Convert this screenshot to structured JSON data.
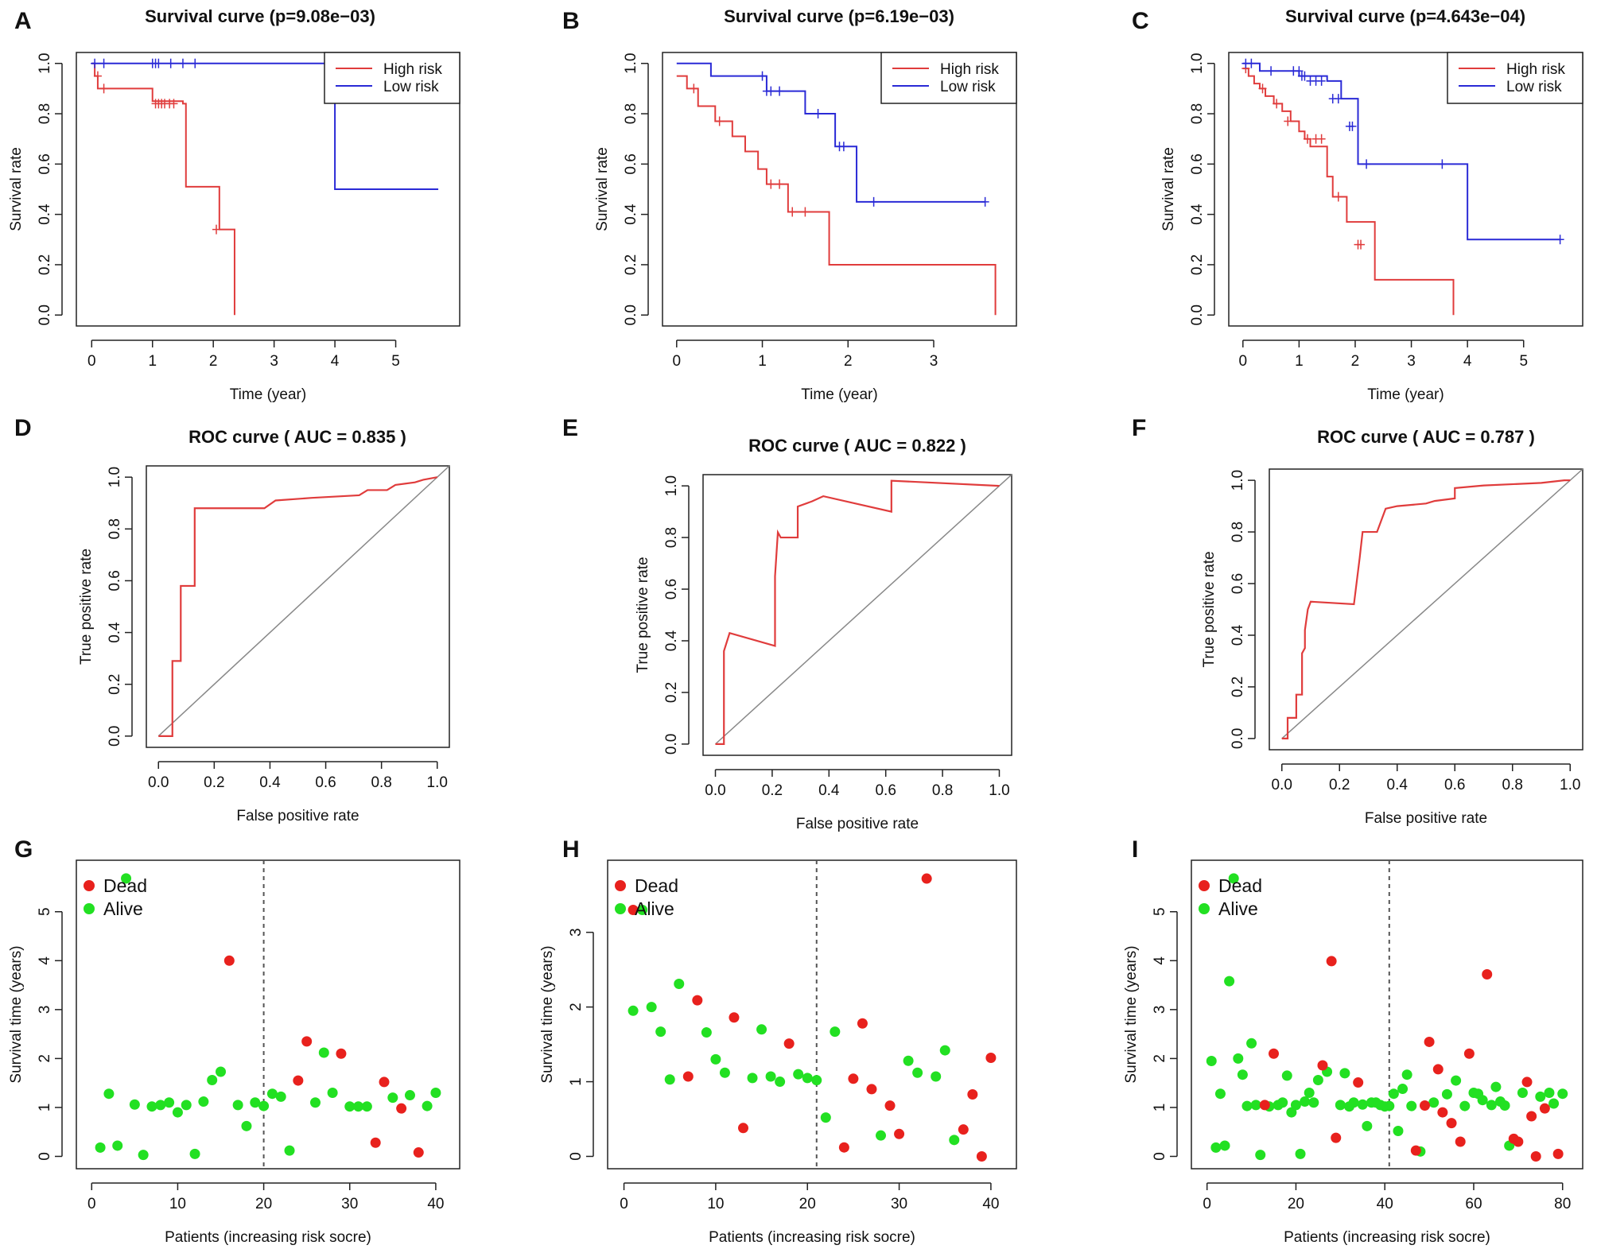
{
  "colors": {
    "high_risk": "#e03c3c",
    "low_risk": "#2a2ad6",
    "dead": "#e8211d",
    "alive": "#22e022",
    "diagonal": "#888888",
    "axis": "#222222"
  },
  "chart_data": [
    {
      "panel": "A",
      "type": "line",
      "title": "Survival curve (p=9.08e−03)",
      "xlabel": "Time (year)",
      "ylabel": "Survival rate",
      "xlim": [
        0,
        5.8
      ],
      "ylim": [
        0,
        1
      ],
      "xticks": [
        0,
        1,
        2,
        3,
        4,
        5
      ],
      "yticks": [
        "0.0",
        "0.2",
        "0.4",
        "0.6",
        "0.8",
        "1.0"
      ],
      "legend": {
        "position": "top-right",
        "entries": [
          "High risk",
          "Low risk"
        ]
      },
      "series": [
        {
          "name": "High risk",
          "color_key": "high_risk",
          "x": [
            0,
            0.05,
            0.1,
            0.25,
            1.0,
            1.5,
            1.55,
            2.1,
            2.35
          ],
          "y": [
            1.0,
            0.95,
            0.9,
            0.9,
            0.85,
            0.84,
            0.51,
            0.34,
            0.0
          ],
          "censor_x": [
            0.1,
            0.2,
            1.05,
            1.1,
            1.15,
            1.2,
            1.28,
            1.35,
            2.05
          ],
          "censor_y": [
            0.95,
            0.9,
            0.84,
            0.84,
            0.84,
            0.84,
            0.84,
            0.84,
            0.34
          ]
        },
        {
          "name": "Low risk",
          "color_key": "low_risk",
          "x": [
            0,
            4.0,
            5.7
          ],
          "y": [
            1.0,
            0.5,
            0.5
          ],
          "censor_x": [
            0.05,
            0.2,
            1.0,
            1.05,
            1.1,
            1.3,
            1.5,
            1.7
          ],
          "censor_y": [
            1.0,
            1.0,
            1.0,
            1.0,
            1.0,
            1.0,
            1.0,
            1.0
          ],
          "end_censor": [
            5.7,
            0.5
          ]
        }
      ]
    },
    {
      "panel": "B",
      "type": "line",
      "title": "Survival curve (p=6.19e−03)",
      "xlabel": "Time (year)",
      "ylabel": "Survival rate",
      "xlim": [
        0,
        3.8
      ],
      "ylim": [
        0,
        1
      ],
      "xticks": [
        0,
        1,
        2,
        3
      ],
      "yticks": [
        "0.0",
        "0.2",
        "0.4",
        "0.6",
        "0.8",
        "1.0"
      ],
      "legend": {
        "position": "top-right",
        "entries": [
          "High risk",
          "Low risk"
        ]
      },
      "series": [
        {
          "name": "High risk",
          "color_key": "high_risk",
          "x": [
            0,
            0.12,
            0.25,
            0.45,
            0.65,
            0.8,
            0.95,
            1.05,
            1.3,
            1.78,
            3.72
          ],
          "y": [
            0.95,
            0.9,
            0.83,
            0.77,
            0.71,
            0.65,
            0.58,
            0.52,
            0.41,
            0.2,
            0.0
          ],
          "censor_x": [
            0.2,
            0.5,
            1.1,
            1.2,
            1.35,
            1.5
          ],
          "censor_y": [
            0.9,
            0.77,
            0.52,
            0.52,
            0.41,
            0.41
          ]
        },
        {
          "name": "Low risk",
          "color_key": "low_risk",
          "x": [
            0,
            0.4,
            1.05,
            1.5,
            1.85,
            2.1,
            3.6
          ],
          "y": [
            1.0,
            0.95,
            0.89,
            0.8,
            0.67,
            0.45,
            0.45
          ],
          "censor_x": [
            1.0,
            1.05,
            1.1,
            1.2,
            1.65,
            1.9,
            1.95,
            2.3,
            3.6
          ],
          "censor_y": [
            0.95,
            0.89,
            0.89,
            0.89,
            0.8,
            0.67,
            0.67,
            0.45,
            0.45
          ]
        }
      ]
    },
    {
      "panel": "C",
      "type": "line",
      "title": "Survival curve (p=4.643e−04)",
      "xlabel": "Time (year)",
      "ylabel": "Survival rate",
      "xlim": [
        0,
        5.8
      ],
      "ylim": [
        0,
        1
      ],
      "xticks": [
        0,
        1,
        2,
        3,
        4,
        5
      ],
      "yticks": [
        "0.0",
        "0.2",
        "0.4",
        "0.6",
        "0.8",
        "1.0"
      ],
      "legend": {
        "position": "top-right",
        "entries": [
          "High risk",
          "Low risk"
        ]
      },
      "series": [
        {
          "name": "High risk",
          "color_key": "high_risk",
          "x": [
            0,
            0.1,
            0.2,
            0.3,
            0.4,
            0.55,
            0.7,
            0.85,
            1.0,
            1.1,
            1.2,
            1.5,
            1.6,
            1.85,
            2.35,
            3.75
          ],
          "y": [
            0.98,
            0.95,
            0.92,
            0.9,
            0.87,
            0.84,
            0.81,
            0.77,
            0.73,
            0.7,
            0.67,
            0.55,
            0.47,
            0.37,
            0.14,
            0.0
          ],
          "censor_x": [
            0.05,
            0.35,
            0.6,
            0.8,
            1.15,
            1.3,
            1.4,
            1.7,
            2.05,
            2.1
          ],
          "censor_y": [
            0.98,
            0.9,
            0.84,
            0.77,
            0.7,
            0.7,
            0.7,
            0.47,
            0.28,
            0.28
          ]
        },
        {
          "name": "Low risk",
          "color_key": "low_risk",
          "x": [
            0,
            0.3,
            1.0,
            1.5,
            1.75,
            2.05,
            4.0,
            5.65
          ],
          "y": [
            1.0,
            0.97,
            0.95,
            0.93,
            0.86,
            0.6,
            0.3,
            0.3
          ],
          "censor_x": [
            0.05,
            0.15,
            0.5,
            0.9,
            1.0,
            1.05,
            1.1,
            1.2,
            1.3,
            1.4,
            1.6,
            1.7,
            1.9,
            1.95,
            2.2,
            3.55,
            5.65
          ],
          "censor_y": [
            1.0,
            1.0,
            0.97,
            0.97,
            0.97,
            0.95,
            0.95,
            0.93,
            0.93,
            0.93,
            0.86,
            0.86,
            0.75,
            0.75,
            0.6,
            0.6,
            0.3
          ]
        }
      ]
    },
    {
      "panel": "D",
      "type": "line",
      "title": "ROC curve ( AUC =  0.835 )",
      "xlabel": "False positive rate",
      "ylabel": "True positive rate",
      "xlim": [
        0,
        1
      ],
      "ylim": [
        0,
        1
      ],
      "xticks": [
        "0.0",
        "0.2",
        "0.4",
        "0.6",
        "0.8",
        "1.0"
      ],
      "yticks": [
        "0.0",
        "0.2",
        "0.4",
        "0.6",
        "0.8",
        "1.0"
      ],
      "roc": {
        "x": [
          0,
          0.05,
          0.05,
          0.08,
          0.08,
          0.13,
          0.13,
          0.38,
          0.42,
          0.55,
          0.72,
          0.75,
          0.82,
          0.85,
          0.92,
          0.95,
          1.0
        ],
        "y": [
          0,
          0,
          0.29,
          0.29,
          0.58,
          0.58,
          0.88,
          0.88,
          0.91,
          0.92,
          0.93,
          0.95,
          0.95,
          0.97,
          0.98,
          0.99,
          1.0
        ]
      }
    },
    {
      "panel": "E",
      "type": "line",
      "title": "ROC curve ( AUC =  0.822 )",
      "xlabel": "False positive rate",
      "ylabel": "True positive rate",
      "xlim": [
        0,
        1
      ],
      "ylim": [
        0,
        1
      ],
      "xticks": [
        "0.0",
        "0.2",
        "0.4",
        "0.6",
        "0.8",
        "1.0"
      ],
      "yticks": [
        "0.0",
        "0.2",
        "0.4",
        "0.6",
        "0.8",
        "1.0"
      ],
      "roc": {
        "x": [
          0,
          0.03,
          0.03,
          0.05,
          0.21,
          0.21,
          0.22,
          0.23,
          0.29,
          0.29,
          0.34,
          0.38,
          0.62,
          0.62,
          1.0
        ],
        "y": [
          0,
          0,
          0.36,
          0.43,
          0.38,
          0.65,
          0.82,
          0.8,
          0.8,
          0.92,
          0.94,
          0.96,
          0.9,
          1.02,
          1.0
        ]
      }
    },
    {
      "panel": "F",
      "type": "line",
      "title": "ROC curve ( AUC =  0.787 )",
      "xlabel": "False positive rate",
      "ylabel": "True positive rate",
      "xlim": [
        0,
        1
      ],
      "ylim": [
        0,
        1
      ],
      "xticks": [
        "0.0",
        "0.2",
        "0.4",
        "0.6",
        "0.8",
        "1.0"
      ],
      "yticks": [
        "0.0",
        "0.2",
        "0.4",
        "0.6",
        "0.8",
        "1.0"
      ],
      "roc": {
        "x": [
          0,
          0.02,
          0.02,
          0.05,
          0.05,
          0.07,
          0.07,
          0.08,
          0.08,
          0.09,
          0.1,
          0.25,
          0.27,
          0.28,
          0.33,
          0.36,
          0.4,
          0.5,
          0.53,
          0.6,
          0.6,
          0.7,
          0.9,
          0.98,
          1.0
        ],
        "y": [
          0,
          0,
          0.08,
          0.08,
          0.17,
          0.17,
          0.33,
          0.35,
          0.42,
          0.5,
          0.53,
          0.52,
          0.7,
          0.8,
          0.8,
          0.89,
          0.9,
          0.91,
          0.92,
          0.93,
          0.97,
          0.98,
          0.99,
          1.0,
          1.0
        ]
      }
    },
    {
      "panel": "G",
      "type": "scatter",
      "xlabel": "Patients (increasing risk socre)",
      "ylabel": "Survival time (years)",
      "xlim": [
        0,
        41
      ],
      "ylim": [
        0,
        5.8
      ],
      "cutoff_x": 20,
      "xticks": [
        0,
        10,
        20,
        30,
        40
      ],
      "yticks": [
        0,
        1,
        2,
        3,
        4,
        5
      ],
      "legend": {
        "position": "top-left",
        "entries": [
          "Dead",
          "Alive"
        ]
      },
      "dead": {
        "x": [
          16,
          24,
          25,
          29,
          33,
          34,
          36,
          38
        ],
        "y": [
          4.0,
          1.55,
          2.35,
          2.1,
          0.28,
          1.52,
          0.98,
          0.08
        ]
      },
      "alive": {
        "x": [
          1,
          2,
          3,
          4,
          5,
          6,
          7,
          8,
          9,
          10,
          11,
          12,
          13,
          14,
          15,
          17,
          18,
          19,
          20,
          21,
          22,
          23,
          26,
          27,
          28,
          30,
          31,
          32,
          35,
          37,
          39,
          40
        ],
        "y": [
          0.18,
          1.28,
          0.22,
          5.68,
          1.06,
          0.03,
          1.02,
          1.05,
          1.1,
          0.9,
          1.05,
          0.05,
          1.12,
          1.56,
          1.73,
          1.05,
          0.62,
          1.1,
          1.03,
          1.28,
          1.22,
          0.12,
          1.1,
          2.12,
          1.3,
          1.02,
          1.02,
          1.02,
          1.2,
          1.25,
          1.03,
          1.3
        ]
      }
    },
    {
      "panel": "H",
      "type": "scatter",
      "xlabel": "Patients (increasing risk socre)",
      "ylabel": "Survival time (years)",
      "xlim": [
        0,
        41
      ],
      "ylim": [
        0,
        3.8
      ],
      "cutoff_x": 21,
      "xticks": [
        0,
        10,
        20,
        30,
        40
      ],
      "yticks": [
        0,
        1,
        2,
        3
      ],
      "legend": {
        "position": "top-left",
        "entries": [
          "Dead",
          "Alive"
        ]
      },
      "dead": {
        "x": [
          1,
          7,
          8,
          12,
          13,
          18,
          24,
          25,
          26,
          27,
          29,
          30,
          33,
          37,
          38,
          39,
          40
        ],
        "y": [
          3.3,
          1.07,
          2.09,
          1.86,
          0.38,
          1.51,
          0.12,
          1.04,
          1.78,
          0.9,
          0.68,
          0.3,
          3.72,
          0.36,
          0.83,
          0.0,
          1.32
        ]
      },
      "alive": {
        "x": [
          1,
          2,
          3,
          4,
          5,
          6,
          9,
          10,
          11,
          14,
          15,
          16,
          17,
          19,
          20,
          21,
          22,
          23,
          28,
          31,
          32,
          34,
          35,
          36
        ],
        "y": [
          1.95,
          3.3,
          2.0,
          1.67,
          1.03,
          2.31,
          1.66,
          1.3,
          1.12,
          1.05,
          1.7,
          1.07,
          1.0,
          1.1,
          1.05,
          1.02,
          0.52,
          1.67,
          0.28,
          1.28,
          1.12,
          1.07,
          1.42,
          0.22
        ]
      }
    },
    {
      "panel": "I",
      "type": "scatter",
      "xlabel": "Patients (increasing risk socre)",
      "ylabel": "Survival time (years)",
      "xlim": [
        0,
        81
      ],
      "ylim": [
        0,
        5.8
      ],
      "cutoff_x": 41,
      "xticks": [
        0,
        20,
        40,
        60,
        80
      ],
      "yticks": [
        0,
        1,
        2,
        3,
        4,
        5
      ],
      "legend": {
        "position": "top-left",
        "entries": [
          "Dead",
          "Alive"
        ]
      },
      "dead": {
        "x": [
          13,
          15,
          26,
          28,
          29,
          34,
          47,
          49,
          50,
          52,
          53,
          55,
          57,
          59,
          63,
          69,
          70,
          72,
          73,
          74,
          76,
          79
        ],
        "y": [
          1.05,
          2.1,
          1.86,
          3.99,
          0.38,
          1.51,
          0.12,
          1.04,
          2.34,
          1.78,
          0.9,
          0.68,
          0.3,
          2.1,
          3.72,
          0.36,
          0.3,
          1.52,
          0.82,
          0.0,
          0.98,
          0.05
        ]
      },
      "alive": {
        "x": [
          1,
          2,
          3,
          4,
          5,
          6,
          7,
          8,
          9,
          10,
          11,
          12,
          14,
          16,
          17,
          18,
          19,
          20,
          21,
          22,
          23,
          24,
          25,
          27,
          30,
          31,
          32,
          33,
          35,
          36,
          37,
          38,
          39,
          40,
          41,
          42,
          43,
          44,
          45,
          46,
          48,
          51,
          54,
          56,
          58,
          60,
          61,
          62,
          64,
          65,
          66,
          67,
          68,
          71,
          75,
          77,
          78,
          80
        ],
        "y": [
          1.95,
          0.18,
          1.28,
          0.22,
          3.58,
          5.68,
          2.0,
          1.67,
          1.03,
          2.31,
          1.05,
          0.03,
          1.02,
          1.05,
          1.1,
          1.65,
          0.9,
          1.05,
          0.05,
          1.12,
          1.3,
          1.1,
          1.56,
          1.73,
          1.05,
          1.7,
          1.02,
          1.1,
          1.06,
          0.62,
          1.1,
          1.1,
          1.05,
          1.02,
          1.03,
          1.28,
          0.52,
          1.38,
          1.67,
          1.03,
          0.1,
          1.1,
          1.27,
          1.55,
          1.03,
          1.3,
          1.28,
          1.15,
          1.05,
          1.42,
          1.12,
          1.04,
          0.22,
          1.3,
          1.22,
          1.3,
          1.08,
          1.28
        ]
      }
    }
  ]
}
